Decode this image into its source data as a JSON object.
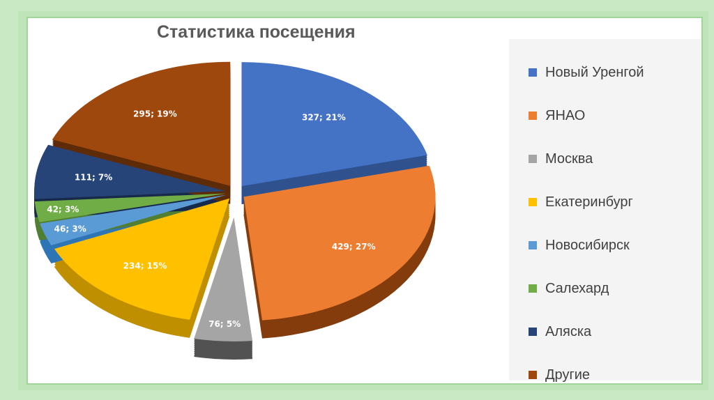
{
  "chart_data": {
    "type": "pie",
    "title": "Статистика посещения",
    "legend_position": "right",
    "slices": [
      {
        "name": "Новый Уренгой",
        "value": 327,
        "percent": "21%",
        "label": "327; 21%",
        "color": "#4472c4",
        "side": "#2f528f",
        "explode": 0
      },
      {
        "name": "ЯНАО",
        "value": 429,
        "percent": "27%",
        "label": "429; 27%",
        "color": "#ed7d31",
        "side": "#843c0c",
        "explode": 0
      },
      {
        "name": "Москва",
        "value": 76,
        "percent": "5%",
        "label": "76; 5%",
        "color": "#a5a5a5",
        "side": "#525252",
        "explode": 1
      },
      {
        "name": "Екатеринбург",
        "value": 234,
        "percent": "15%",
        "label": "234; 15%",
        "color": "#ffc000",
        "side": "#bf8f00",
        "explode": 0
      },
      {
        "name": "Новосибирск",
        "value": 46,
        "percent": "3%",
        "label": "46; 3%",
        "color": "#5b9bd5",
        "side": "#2e75b6",
        "explode": 0
      },
      {
        "name": "Салехард",
        "value": 42,
        "percent": "3%",
        "label": "42; 3%",
        "color": "#70ad47",
        "side": "#507e32",
        "explode": 0
      },
      {
        "name": "Аляска",
        "value": 111,
        "percent": "7%",
        "label": "111; 7%",
        "color": "#264478",
        "side": "#172a4b",
        "explode": 0
      },
      {
        "name": "Другие",
        "value": 295,
        "percent": "19%",
        "label": "295; 19%",
        "color": "#9e480e",
        "side": "#5e2b08",
        "explode": 0
      }
    ]
  }
}
